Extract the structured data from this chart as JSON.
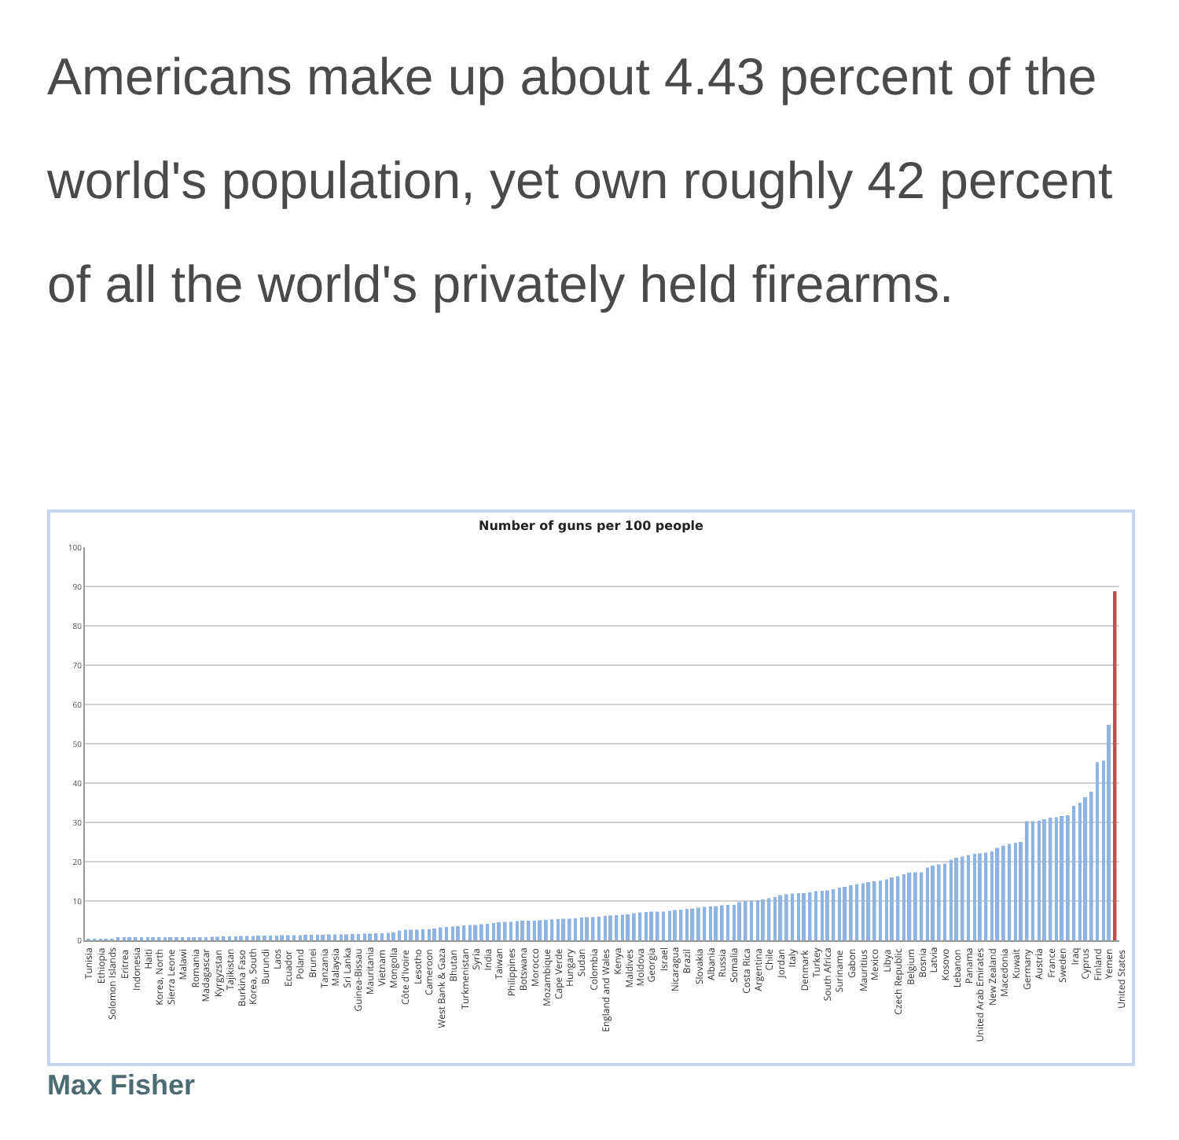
{
  "chart_data": {
    "type": "bar",
    "title": "Americans make up about 4.43 percent of the world's population, yet own roughly 42 percent of all the world's privately held firearms.",
    "subtitle": "Number of guns per 100 people",
    "annotations": [
      "Max Fisher"
    ],
    "categories": [
      "Tunisia",
      null,
      "Ethiopia",
      null,
      "Solomon Islands",
      null,
      "Eritrea",
      null,
      "Indonesia",
      null,
      "Haiti",
      null,
      "Korea, North",
      null,
      "Sierra Leone",
      null,
      "Malawi",
      null,
      "Romania",
      null,
      "Madagascar",
      null,
      "Kyrgyzstan",
      null,
      "Tajikistan",
      null,
      "Burkina Faso",
      null,
      "Korea, South",
      null,
      "Burundi",
      null,
      "Laos",
      null,
      "Ecuador",
      null,
      "Poland",
      null,
      "Brunei",
      null,
      "Tanzania",
      null,
      "Malaysia",
      null,
      "Sri Lanka",
      null,
      "Guinea-Bissau",
      null,
      "Mauritania",
      null,
      "Vietnam",
      null,
      "Mongolia",
      null,
      "Côte d'Ivoire",
      null,
      "Lesotho",
      null,
      "Cameroon",
      null,
      "West Bank & Gaza",
      null,
      "Bhutan",
      null,
      "Turkmenistan",
      null,
      "Syria",
      null,
      "India",
      null,
      "Taiwan",
      null,
      "Philippines",
      null,
      "Botswana",
      null,
      "Morocco",
      null,
      "Mozambique",
      null,
      "Cape Verde",
      null,
      "Hungary",
      null,
      "Sudan",
      null,
      "Colombia",
      null,
      "England and Wales",
      null,
      "Kenya",
      null,
      "Maldives",
      null,
      "Moldova",
      null,
      "Georgia",
      null,
      "Israel",
      null,
      "Nicaragua",
      null,
      "Brazil",
      null,
      "Slovakia",
      null,
      "Albania",
      null,
      "Russia",
      null,
      "Somalia",
      null,
      "Costa Rica",
      null,
      "Argentina",
      null,
      "Chile",
      null,
      "Jordan",
      null,
      "Italy",
      null,
      "Denmark",
      null,
      "Turkey",
      null,
      "South Africa",
      null,
      "Suriname",
      null,
      "Gabon",
      null,
      "Mauritius",
      null,
      "Mexico",
      null,
      "Libya",
      null,
      "Czech Republic",
      null,
      "Belgium",
      null,
      "Bosnia",
      null,
      "Latvia",
      null,
      "Kosovo",
      null,
      "Lebanon",
      null,
      "Panama",
      null,
      "United Arab Emirates",
      null,
      "New Zealand",
      null,
      "Macedonia",
      null,
      "Kuwait",
      null,
      "Germany",
      null,
      "Austria",
      null,
      "France",
      null,
      "Sweden",
      null,
      "Iraq",
      null,
      "Cyprus",
      null,
      "Finland",
      null,
      "Yemen",
      "United States"
    ],
    "values": [
      0.1,
      0.3,
      0.4,
      0.4,
      0.4,
      0.5,
      0.5,
      0.5,
      0.5,
      0.6,
      0.6,
      0.6,
      0.6,
      0.6,
      0.6,
      0.7,
      0.7,
      0.7,
      0.7,
      0.8,
      0.8,
      0.9,
      0.9,
      1.0,
      1.0,
      1.0,
      1.1,
      1.1,
      1.1,
      1.2,
      1.2,
      1.2,
      1.2,
      1.3,
      1.3,
      1.3,
      1.3,
      1.4,
      1.4,
      1.4,
      1.4,
      1.5,
      1.5,
      1.5,
      1.5,
      1.6,
      1.6,
      1.7,
      1.7,
      1.8,
      1.8,
      1.9,
      2.0,
      2.5,
      2.7,
      2.7,
      2.7,
      2.8,
      2.8,
      3.0,
      3.3,
      3.4,
      3.5,
      3.6,
      3.8,
      3.9,
      3.9,
      4.1,
      4.2,
      4.4,
      4.6,
      4.7,
      4.7,
      4.9,
      5.0,
      5.0,
      5.0,
      5.1,
      5.2,
      5.3,
      5.4,
      5.5,
      5.5,
      5.6,
      5.8,
      5.9,
      5.9,
      6.0,
      6.2,
      6.3,
      6.4,
      6.5,
      6.6,
      6.9,
      7.1,
      7.2,
      7.3,
      7.3,
      7.3,
      7.5,
      7.7,
      7.8,
      8.0,
      8.1,
      8.3,
      8.5,
      8.6,
      8.7,
      8.9,
      9.0,
      9.0,
      9.7,
      10.0,
      10.1,
      10.2,
      10.4,
      10.7,
      11.0,
      11.5,
      11.7,
      11.9,
      12.0,
      12.0,
      12.2,
      12.5,
      12.6,
      12.7,
      13.0,
      13.4,
      13.6,
      14.0,
      14.3,
      14.5,
      14.8,
      15.0,
      15.2,
      15.5,
      16.0,
      16.3,
      16.8,
      17.2,
      17.3,
      17.3,
      18.5,
      19.0,
      19.3,
      19.5,
      20.5,
      21.0,
      21.3,
      21.7,
      22.0,
      22.1,
      22.3,
      22.6,
      23.5,
      24.1,
      24.5,
      24.8,
      25.0,
      30.3,
      30.3,
      30.4,
      30.8,
      31.2,
      31.3,
      31.6,
      31.8,
      34.2,
      35.0,
      36.4,
      37.8,
      45.3,
      45.7,
      54.8,
      88.8
    ],
    "colors": [
      "#8eb4e3",
      "#8eb4e3",
      "#8eb4e3",
      "#8eb4e3",
      "#8eb4e3",
      "#8eb4e3",
      "#8eb4e3",
      "#8eb4e3",
      "#8eb4e3",
      "#8eb4e3",
      "#8eb4e3",
      "#8eb4e3",
      "#8eb4e3",
      "#8eb4e3",
      "#8eb4e3",
      "#8eb4e3",
      "#8eb4e3",
      "#8eb4e3",
      "#8eb4e3",
      "#8eb4e3",
      "#8eb4e3",
      "#8eb4e3",
      "#8eb4e3",
      "#8eb4e3",
      "#8eb4e3",
      "#8eb4e3",
      "#8eb4e3",
      "#8eb4e3",
      "#8eb4e3",
      "#8eb4e3",
      "#8eb4e3",
      "#8eb4e3",
      "#8eb4e3",
      "#8eb4e3",
      "#8eb4e3",
      "#8eb4e3",
      "#8eb4e3",
      "#8eb4e3",
      "#8eb4e3",
      "#8eb4e3",
      "#8eb4e3",
      "#8eb4e3",
      "#8eb4e3",
      "#8eb4e3",
      "#8eb4e3",
      "#8eb4e3",
      "#8eb4e3",
      "#8eb4e3",
      "#8eb4e3",
      "#8eb4e3",
      "#8eb4e3",
      "#8eb4e3",
      "#8eb4e3",
      "#8eb4e3",
      "#8eb4e3",
      "#8eb4e3",
      "#8eb4e3",
      "#8eb4e3",
      "#8eb4e3",
      "#8eb4e3",
      "#8eb4e3",
      "#8eb4e3",
      "#8eb4e3",
      "#8eb4e3",
      "#8eb4e3",
      "#8eb4e3",
      "#8eb4e3",
      "#8eb4e3",
      "#8eb4e3",
      "#8eb4e3",
      "#8eb4e3",
      "#8eb4e3",
      "#8eb4e3",
      "#8eb4e3",
      "#8eb4e3",
      "#8eb4e3",
      "#8eb4e3",
      "#8eb4e3",
      "#8eb4e3",
      "#8eb4e3",
      "#8eb4e3",
      "#8eb4e3",
      "#8eb4e3",
      "#8eb4e3",
      "#8eb4e3",
      "#8eb4e3",
      "#8eb4e3",
      "#8eb4e3",
      "#8eb4e3",
      "#8eb4e3",
      "#8eb4e3",
      "#8eb4e3",
      "#8eb4e3",
      "#8eb4e3",
      "#8eb4e3",
      "#8eb4e3",
      "#8eb4e3",
      "#8eb4e3",
      "#8eb4e3",
      "#8eb4e3",
      "#8eb4e3",
      "#8eb4e3",
      "#8eb4e3",
      "#8eb4e3",
      "#8eb4e3",
      "#8eb4e3",
      "#8eb4e3",
      "#8eb4e3",
      "#8eb4e3",
      "#8eb4e3",
      "#8eb4e3",
      "#8eb4e3",
      "#8eb4e3",
      "#8eb4e3",
      "#8eb4e3",
      "#8eb4e3",
      "#8eb4e3",
      "#8eb4e3",
      "#8eb4e3",
      "#8eb4e3",
      "#8eb4e3",
      "#8eb4e3",
      "#8eb4e3",
      "#8eb4e3",
      "#8eb4e3",
      "#8eb4e3",
      "#8eb4e3",
      "#8eb4e3",
      "#8eb4e3",
      "#8eb4e3",
      "#8eb4e3",
      "#8eb4e3",
      "#8eb4e3",
      "#8eb4e3",
      "#8eb4e3",
      "#8eb4e3",
      "#8eb4e3",
      "#8eb4e3",
      "#8eb4e3",
      "#8eb4e3",
      "#8eb4e3",
      "#8eb4e3",
      "#8eb4e3",
      "#8eb4e3",
      "#8eb4e3",
      "#8eb4e3",
      "#8eb4e3",
      "#8eb4e3",
      "#8eb4e3",
      "#8eb4e3",
      "#8eb4e3",
      "#8eb4e3",
      "#8eb4e3",
      "#8eb4e3",
      "#8eb4e3",
      "#8eb4e3",
      "#8eb4e3",
      "#8eb4e3",
      "#8eb4e3",
      "#8eb4e3",
      "#8eb4e3",
      "#8eb4e3",
      "#8eb4e3",
      "#8eb4e3",
      "#8eb4e3",
      "#8eb4e3",
      "#8eb4e3",
      "#8eb4e3",
      "#8eb4e3",
      "#8eb4e3",
      "#8eb4e3",
      "#8eb4e3",
      "#8eb4e3",
      "#8eb4e3",
      "#8eb4e3",
      "#c0504d"
    ],
    "ylim": [
      0,
      100
    ],
    "yticks": [
      0,
      10,
      20,
      30,
      40,
      50,
      60,
      70,
      80,
      90,
      100
    ],
    "grid": "y"
  }
}
